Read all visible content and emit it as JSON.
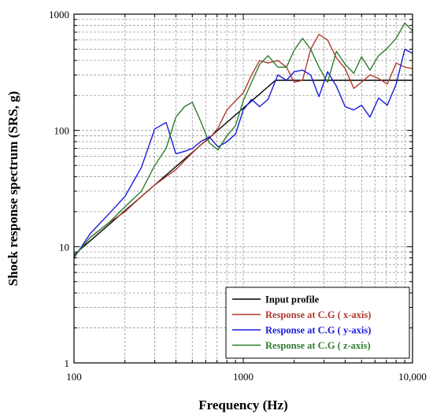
{
  "chart_data": {
    "type": "line",
    "title": "",
    "xlabel": "Frequency (Hz)",
    "ylabel": "Shock response spectrum (SRS, g)",
    "xscale": "log",
    "yscale": "log",
    "xlim": [
      100,
      10000
    ],
    "ylim": [
      1,
      1000
    ],
    "xtick_labels": [
      "100",
      "1000",
      "10,000"
    ],
    "ytick_labels": [
      "1",
      "10",
      "100",
      "1000"
    ],
    "grid": "dashed, minor and major",
    "legend_position": "bottom-right",
    "series": [
      {
        "name": "Input profile",
        "color": "#000000",
        "points": [
          [
            100,
            8.5
          ],
          [
            1550,
            270
          ],
          [
            10000,
            270
          ]
        ]
      },
      {
        "name": "Response at C.G ( x-axis)",
        "color": "#b03a2e",
        "points": [
          [
            100,
            8.3
          ],
          [
            125,
            12
          ],
          [
            160,
            16
          ],
          [
            200,
            20
          ],
          [
            250,
            27
          ],
          [
            300,
            34
          ],
          [
            350,
            40
          ],
          [
            400,
            46
          ],
          [
            450,
            55
          ],
          [
            500,
            64
          ],
          [
            560,
            75
          ],
          [
            630,
            85
          ],
          [
            710,
            105
          ],
          [
            800,
            150
          ],
          [
            900,
            180
          ],
          [
            1000,
            210
          ],
          [
            1120,
            300
          ],
          [
            1250,
            400
          ],
          [
            1400,
            380
          ],
          [
            1600,
            400
          ],
          [
            1800,
            350
          ],
          [
            2000,
            260
          ],
          [
            2240,
            270
          ],
          [
            2500,
            500
          ],
          [
            2800,
            670
          ],
          [
            3150,
            600
          ],
          [
            3550,
            420
          ],
          [
            4000,
            340
          ],
          [
            4500,
            230
          ],
          [
            5000,
            260
          ],
          [
            5600,
            300
          ],
          [
            6300,
            280
          ],
          [
            7100,
            250
          ],
          [
            8000,
            380
          ],
          [
            9000,
            350
          ],
          [
            10000,
            340
          ]
        ]
      },
      {
        "name": "Response at C.G ( y-axis)",
        "color": "#1a1adb",
        "points": [
          [
            100,
            8.0
          ],
          [
            125,
            13
          ],
          [
            160,
            19
          ],
          [
            200,
            27
          ],
          [
            250,
            48
          ],
          [
            300,
            103
          ],
          [
            350,
            117
          ],
          [
            400,
            63
          ],
          [
            450,
            66
          ],
          [
            500,
            70
          ],
          [
            560,
            80
          ],
          [
            630,
            88
          ],
          [
            710,
            72
          ],
          [
            800,
            80
          ],
          [
            900,
            93
          ],
          [
            1000,
            150
          ],
          [
            1120,
            185
          ],
          [
            1250,
            160
          ],
          [
            1400,
            185
          ],
          [
            1600,
            300
          ],
          [
            1800,
            270
          ],
          [
            2000,
            320
          ],
          [
            2240,
            330
          ],
          [
            2500,
            300
          ],
          [
            2800,
            195
          ],
          [
            3150,
            320
          ],
          [
            3550,
            240
          ],
          [
            4000,
            160
          ],
          [
            4500,
            150
          ],
          [
            5000,
            165
          ],
          [
            5600,
            130
          ],
          [
            6300,
            190
          ],
          [
            7100,
            165
          ],
          [
            8000,
            250
          ],
          [
            9000,
            500
          ],
          [
            10000,
            460
          ]
        ]
      },
      {
        "name": "Response at C.G ( z-axis)",
        "color": "#2e7d2e",
        "points": [
          [
            100,
            8.2
          ],
          [
            125,
            12
          ],
          [
            160,
            16
          ],
          [
            200,
            22
          ],
          [
            250,
            30
          ],
          [
            300,
            50
          ],
          [
            350,
            70
          ],
          [
            400,
            130
          ],
          [
            450,
            160
          ],
          [
            500,
            175
          ],
          [
            560,
            120
          ],
          [
            630,
            78
          ],
          [
            710,
            68
          ],
          [
            800,
            90
          ],
          [
            900,
            110
          ],
          [
            1000,
            180
          ],
          [
            1120,
            260
          ],
          [
            1250,
            370
          ],
          [
            1400,
            440
          ],
          [
            1600,
            350
          ],
          [
            1800,
            350
          ],
          [
            2000,
            490
          ],
          [
            2240,
            620
          ],
          [
            2500,
            500
          ],
          [
            2800,
            350
          ],
          [
            3150,
            260
          ],
          [
            3550,
            480
          ],
          [
            4000,
            370
          ],
          [
            4500,
            310
          ],
          [
            5000,
            430
          ],
          [
            5600,
            330
          ],
          [
            6300,
            440
          ],
          [
            7100,
            510
          ],
          [
            8000,
            620
          ],
          [
            9000,
            840
          ],
          [
            10000,
            720
          ]
        ]
      }
    ]
  }
}
